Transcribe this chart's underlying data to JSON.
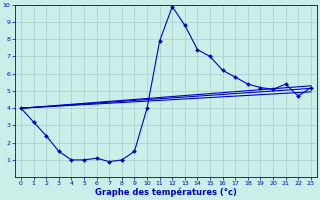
{
  "title": "Graphe des températures (°c)",
  "bg_color": "#cceee8",
  "grid_color": "#aacccc",
  "line_color": "#0000cc",
  "xlim": [
    -0.5,
    23.5
  ],
  "ylim": [
    0,
    10
  ],
  "xticks": [
    0,
    1,
    2,
    3,
    4,
    5,
    6,
    7,
    8,
    9,
    10,
    11,
    12,
    13,
    14,
    15,
    16,
    17,
    18,
    19,
    20,
    21,
    22,
    23
  ],
  "yticks": [
    1,
    2,
    3,
    4,
    5,
    6,
    7,
    8,
    9,
    10
  ],
  "series1_x": [
    0,
    1,
    2,
    3,
    4,
    5,
    6,
    7,
    8,
    9,
    10,
    11,
    12,
    13,
    14,
    15,
    16,
    17,
    18,
    19,
    20,
    21,
    22,
    23
  ],
  "series1_y": [
    4.0,
    3.2,
    2.4,
    1.5,
    1.0,
    1.0,
    1.1,
    0.9,
    1.0,
    1.5,
    4.0,
    7.9,
    9.9,
    8.8,
    7.4,
    7.0,
    6.2,
    5.8,
    5.4,
    5.2,
    5.1,
    5.4,
    4.7,
    5.2
  ],
  "series2_x": [
    0,
    23
  ],
  "series2_y": [
    4.0,
    5.3
  ],
  "series3_x": [
    0,
    23
  ],
  "series3_y": [
    4.0,
    5.15
  ],
  "series4_x": [
    0,
    23
  ],
  "series4_y": [
    4.0,
    4.95
  ]
}
